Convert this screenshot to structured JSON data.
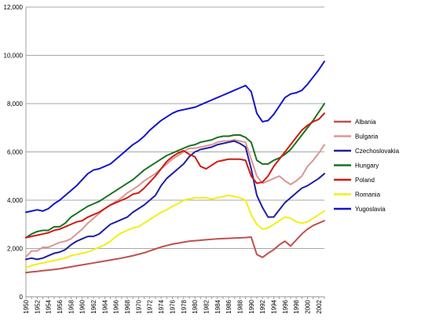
{
  "chart_data": {
    "type": "line",
    "title": "",
    "xlabel": "",
    "ylabel": "",
    "ylim": [
      0,
      12000
    ],
    "yticks": [
      0,
      2000,
      4000,
      6000,
      8000,
      10000,
      12000
    ],
    "ytick_labels": [
      "0",
      "2,000",
      "4,000",
      "6,000",
      "8,000",
      "10,000",
      "12,000"
    ],
    "xlim": [
      1950,
      2003
    ],
    "xtick_labels": [
      "1950",
      "1952",
      "1954",
      "1956",
      "1958",
      "1960",
      "1962",
      "1964",
      "1966",
      "1968",
      "1970",
      "1972",
      "1974",
      "1976",
      "1978",
      "1980",
      "1982",
      "1984",
      "1986",
      "1988",
      "1990",
      "1992",
      "1994",
      "1996",
      "1998",
      "2000",
      "2002"
    ],
    "grid": "horizontal",
    "legend_position": "right",
    "x": [
      1950,
      1951,
      1952,
      1953,
      1954,
      1955,
      1956,
      1957,
      1958,
      1959,
      1960,
      1961,
      1962,
      1963,
      1964,
      1965,
      1966,
      1967,
      1968,
      1969,
      1970,
      1971,
      1972,
      1973,
      1974,
      1975,
      1976,
      1977,
      1978,
      1979,
      1980,
      1981,
      1982,
      1983,
      1984,
      1985,
      1986,
      1987,
      1988,
      1989,
      1990,
      1991,
      1992,
      1993,
      1994,
      1995,
      1996,
      1997,
      1998,
      1999,
      2000,
      2001,
      2002,
      2003
    ],
    "series": [
      {
        "name": "Albania",
        "color": "#c0504d",
        "values": [
          1000,
          1030,
          1050,
          1080,
          1100,
          1130,
          1160,
          1200,
          1240,
          1280,
          1320,
          1360,
          1400,
          1440,
          1480,
          1520,
          1560,
          1600,
          1650,
          1700,
          1760,
          1820,
          1900,
          1980,
          2060,
          2120,
          2180,
          2220,
          2260,
          2300,
          2320,
          2340,
          2360,
          2380,
          2400,
          2410,
          2420,
          2430,
          2440,
          2450,
          2470,
          1750,
          1630,
          1800,
          1950,
          2150,
          2300,
          2100,
          2350,
          2600,
          2800,
          2950,
          3050,
          3150
        ]
      },
      {
        "name": "Bulgaria",
        "color": "#d99694",
        "values": [
          1650,
          1900,
          1900,
          2050,
          2050,
          2150,
          2250,
          2300,
          2400,
          2600,
          2800,
          3050,
          3250,
          3450,
          3650,
          3800,
          3950,
          4100,
          4300,
          4450,
          4600,
          4800,
          4950,
          5100,
          5300,
          5500,
          5700,
          5850,
          6000,
          6150,
          6150,
          6200,
          6250,
          6300,
          6400,
          6450,
          6450,
          6500,
          6450,
          6400,
          5700,
          5000,
          4700,
          4800,
          4900,
          5000,
          4800,
          4650,
          4800,
          5000,
          5400,
          5650,
          5950,
          6300
        ]
      },
      {
        "name": "Czechoslovakia",
        "color": "#1f1fa3",
        "values": [
          1550,
          1600,
          1550,
          1600,
          1700,
          1800,
          1850,
          1950,
          2150,
          2300,
          2400,
          2500,
          2500,
          2600,
          2800,
          3000,
          3100,
          3200,
          3300,
          3500,
          3650,
          3800,
          4000,
          4200,
          4600,
          4900,
          5100,
          5300,
          5500,
          5800,
          6000,
          6100,
          6150,
          6200,
          6300,
          6350,
          6400,
          6450,
          6350,
          6200,
          5300,
          4200,
          3700,
          3300,
          3300,
          3600,
          3900,
          4100,
          4300,
          4500,
          4600,
          4750,
          4900,
          5100
        ]
      },
      {
        "name": "Hungary",
        "color": "#17731f",
        "values": [
          2450,
          2600,
          2700,
          2750,
          2750,
          2900,
          2900,
          3050,
          3300,
          3450,
          3600,
          3750,
          3850,
          3950,
          4100,
          4250,
          4400,
          4550,
          4700,
          4850,
          5050,
          5250,
          5400,
          5550,
          5700,
          5850,
          5950,
          6050,
          6150,
          6250,
          6300,
          6400,
          6450,
          6500,
          6600,
          6650,
          6650,
          6700,
          6700,
          6600,
          6400,
          5650,
          5500,
          5500,
          5650,
          5750,
          5900,
          6100,
          6400,
          6700,
          7000,
          7300,
          7650,
          8000
        ]
      },
      {
        "name": "Poland",
        "color": "#d01a10",
        "values": [
          2450,
          2500,
          2550,
          2600,
          2650,
          2750,
          2800,
          2900,
          3000,
          3100,
          3150,
          3300,
          3400,
          3500,
          3650,
          3800,
          3900,
          4000,
          4100,
          4250,
          4300,
          4500,
          4750,
          5000,
          5300,
          5600,
          5800,
          5950,
          6050,
          5900,
          5800,
          5400,
          5300,
          5450,
          5600,
          5650,
          5700,
          5700,
          5700,
          5650,
          5000,
          4700,
          4750,
          5000,
          5400,
          5700,
          6000,
          6300,
          6600,
          6900,
          7100,
          7250,
          7350,
          7600
        ]
      },
      {
        "name": "Romania",
        "color": "#f2ef14",
        "values": [
          1200,
          1300,
          1350,
          1400,
          1450,
          1500,
          1550,
          1600,
          1700,
          1750,
          1800,
          1850,
          1950,
          2050,
          2150,
          2300,
          2500,
          2650,
          2750,
          2850,
          2900,
          3050,
          3200,
          3350,
          3500,
          3600,
          3750,
          3850,
          4000,
          4050,
          4100,
          4100,
          4100,
          4050,
          4100,
          4150,
          4200,
          4150,
          4100,
          4000,
          3400,
          3000,
          2800,
          2850,
          3000,
          3150,
          3300,
          3250,
          3100,
          3050,
          3100,
          3250,
          3400,
          3550
        ]
      },
      {
        "name": "Yugoslavia",
        "color": "#1515c8",
        "values": [
          3500,
          3550,
          3600,
          3550,
          3650,
          3850,
          4000,
          4200,
          4400,
          4600,
          4850,
          5100,
          5250,
          5300,
          5400,
          5500,
          5700,
          5900,
          6100,
          6300,
          6450,
          6650,
          6900,
          7100,
          7300,
          7450,
          7600,
          7700,
          7750,
          7800,
          7850,
          7950,
          8050,
          8150,
          8250,
          8350,
          8450,
          8550,
          8650,
          8750,
          8500,
          7600,
          7250,
          7300,
          7550,
          7900,
          8250,
          8400,
          8450,
          8550,
          8800,
          9100,
          9400,
          9750
        ]
      }
    ]
  }
}
